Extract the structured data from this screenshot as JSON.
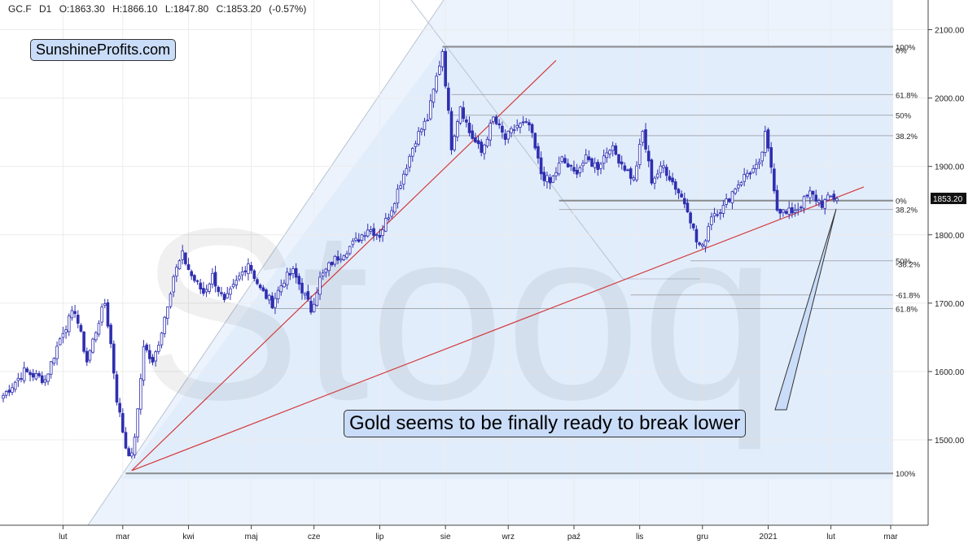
{
  "header": {
    "symbol": "GC.F",
    "interval": "D1",
    "open": "O:1863.30",
    "high": "H:1866.10",
    "low": "L:1847.80",
    "close": "C:1853.20",
    "change": "(-0.57%)"
  },
  "brand": "SunshineProfits.com",
  "watermark": "Stooq",
  "callout": "Gold seems to be finally ready to break lower",
  "colors": {
    "candle": "#2f2fb0",
    "trendline": "#d23b3b",
    "fib_line": "#808080",
    "shade": "#dce9fb",
    "label_bg": "#c9dcf8",
    "last_price_bg": "#111111"
  },
  "chart_data": {
    "type": "candlestick",
    "title": "",
    "xlabel": "",
    "ylabel": "",
    "ylim": [
      1420,
      2150
    ],
    "grid": true,
    "y_ticks": [
      1500,
      1600,
      1700,
      1800,
      1900,
      2000,
      2100
    ],
    "y_tick_labels": [
      "1500.00",
      "1600.00",
      "1700.00",
      "1800.00",
      "1900.00",
      "2000.00",
      "2100.00"
    ],
    "x_ticks": [
      {
        "label": "lut",
        "idx": 20
      },
      {
        "label": "mar",
        "idx": 40
      },
      {
        "label": "kwi",
        "idx": 62
      },
      {
        "label": "maj",
        "idx": 83
      },
      {
        "label": "cze",
        "idx": 104
      },
      {
        "label": "lip",
        "idx": 126
      },
      {
        "label": "sie",
        "idx": 148
      },
      {
        "label": "wrz",
        "idx": 169
      },
      {
        "label": "paź",
        "idx": 191
      },
      {
        "label": "lis",
        "idx": 213
      },
      {
        "label": "gru",
        "idx": 234
      },
      {
        "label": "2021",
        "idx": 256
      },
      {
        "label": "lut",
        "idx": 277
      },
      {
        "label": "mar",
        "idx": 297
      }
    ],
    "last_price": {
      "value": 1853.2,
      "label": "1853.20"
    },
    "anchors": [
      {
        "idx": 0,
        "close": 1565
      },
      {
        "idx": 7,
        "close": 1600
      },
      {
        "idx": 14,
        "close": 1588
      },
      {
        "idx": 20,
        "close": 1660
      },
      {
        "idx": 24,
        "close": 1690
      },
      {
        "idx": 28,
        "close": 1615
      },
      {
        "idx": 32,
        "close": 1675
      },
      {
        "idx": 34,
        "close": 1700
      },
      {
        "idx": 36,
        "close": 1640
      },
      {
        "idx": 38,
        "close": 1560
      },
      {
        "idx": 41,
        "close": 1490
      },
      {
        "idx": 43,
        "close": 1475
      },
      {
        "idx": 45,
        "close": 1540
      },
      {
        "idx": 47,
        "close": 1640
      },
      {
        "idx": 50,
        "close": 1610
      },
      {
        "idx": 53,
        "close": 1660
      },
      {
        "idx": 57,
        "close": 1740
      },
      {
        "idx": 60,
        "close": 1770
      },
      {
        "idx": 63,
        "close": 1740
      },
      {
        "idx": 67,
        "close": 1715
      },
      {
        "idx": 70,
        "close": 1740
      },
      {
        "idx": 74,
        "close": 1700
      },
      {
        "idx": 78,
        "close": 1730
      },
      {
        "idx": 82,
        "close": 1760
      },
      {
        "idx": 86,
        "close": 1720
      },
      {
        "idx": 90,
        "close": 1700
      },
      {
        "idx": 94,
        "close": 1735
      },
      {
        "idx": 97,
        "close": 1745
      },
      {
        "idx": 100,
        "close": 1720
      },
      {
        "idx": 103,
        "close": 1690
      },
      {
        "idx": 106,
        "close": 1735
      },
      {
        "idx": 110,
        "close": 1760
      },
      {
        "idx": 114,
        "close": 1775
      },
      {
        "idx": 118,
        "close": 1790
      },
      {
        "idx": 122,
        "close": 1810
      },
      {
        "idx": 126,
        "close": 1800
      },
      {
        "idx": 130,
        "close": 1840
      },
      {
        "idx": 134,
        "close": 1890
      },
      {
        "idx": 138,
        "close": 1940
      },
      {
        "idx": 142,
        "close": 1970
      },
      {
        "idx": 145,
        "close": 2030
      },
      {
        "idx": 147,
        "close": 2070
      },
      {
        "idx": 150,
        "close": 1930
      },
      {
        "idx": 153,
        "close": 1990
      },
      {
        "idx": 156,
        "close": 1950
      },
      {
        "idx": 160,
        "close": 1920
      },
      {
        "idx": 164,
        "close": 1970
      },
      {
        "idx": 168,
        "close": 1940
      },
      {
        "idx": 172,
        "close": 1960
      },
      {
        "idx": 176,
        "close": 1960
      },
      {
        "idx": 180,
        "close": 1890
      },
      {
        "idx": 183,
        "close": 1875
      },
      {
        "idx": 187,
        "close": 1910
      },
      {
        "idx": 191,
        "close": 1890
      },
      {
        "idx": 195,
        "close": 1910
      },
      {
        "idx": 199,
        "close": 1900
      },
      {
        "idx": 203,
        "close": 1930
      },
      {
        "idx": 207,
        "close": 1905
      },
      {
        "idx": 211,
        "close": 1880
      },
      {
        "idx": 214,
        "close": 1950
      },
      {
        "idx": 217,
        "close": 1880
      },
      {
        "idx": 221,
        "close": 1900
      },
      {
        "idx": 225,
        "close": 1870
      },
      {
        "idx": 229,
        "close": 1840
      },
      {
        "idx": 232,
        "close": 1790
      },
      {
        "idx": 234,
        "close": 1780
      },
      {
        "idx": 237,
        "close": 1830
      },
      {
        "idx": 241,
        "close": 1840
      },
      {
        "idx": 245,
        "close": 1870
      },
      {
        "idx": 249,
        "close": 1890
      },
      {
        "idx": 253,
        "close": 1900
      },
      {
        "idx": 255,
        "close": 1945
      },
      {
        "idx": 257,
        "close": 1900
      },
      {
        "idx": 259,
        "close": 1840
      },
      {
        "idx": 262,
        "close": 1830
      },
      {
        "idx": 266,
        "close": 1840
      },
      {
        "idx": 270,
        "close": 1860
      },
      {
        "idx": 274,
        "close": 1845
      },
      {
        "idx": 277,
        "close": 1855
      },
      {
        "idx": 279,
        "close": 1853
      }
    ],
    "fib_lines": [
      {
        "price": 2075,
        "label": "100%",
        "label2": "0%",
        "x_from_idx": 147,
        "style": "thick"
      },
      {
        "price": 2005,
        "label": "61.8%",
        "x_from_idx": 150,
        "style": "thin"
      },
      {
        "price": 1975,
        "label": "50%",
        "x_from_idx": 150,
        "style": "thin"
      },
      {
        "price": 1945,
        "label": "38.2%",
        "x_from_idx": 150,
        "style": "thin"
      },
      {
        "price": 1850,
        "label": "0%",
        "x_from_idx": 186,
        "style": "thick"
      },
      {
        "price": 1837,
        "label": "38.2%",
        "x_from_idx": 186,
        "style": "thin"
      },
      {
        "price": 1762,
        "label": "50%",
        "label2": "-38.2%",
        "x_from_idx": 230,
        "style": "thin"
      },
      {
        "price": 1712,
        "label": "-61.8%",
        "x_from_idx": 210,
        "style": "thin"
      },
      {
        "price": 1692,
        "label": "61.8%",
        "x_from_idx": 90,
        "style": "thin"
      },
      {
        "price": 1451,
        "label": "100%",
        "x_from_idx": 41,
        "style": "thick"
      }
    ],
    "trendlines": [
      {
        "from": {
          "idx": 43,
          "price": 1455
        },
        "to": {
          "idx": 185,
          "price": 2055
        }
      },
      {
        "from": {
          "idx": 43,
          "price": 1455
        },
        "to": {
          "idx": 288,
          "price": 1870
        }
      }
    ]
  }
}
